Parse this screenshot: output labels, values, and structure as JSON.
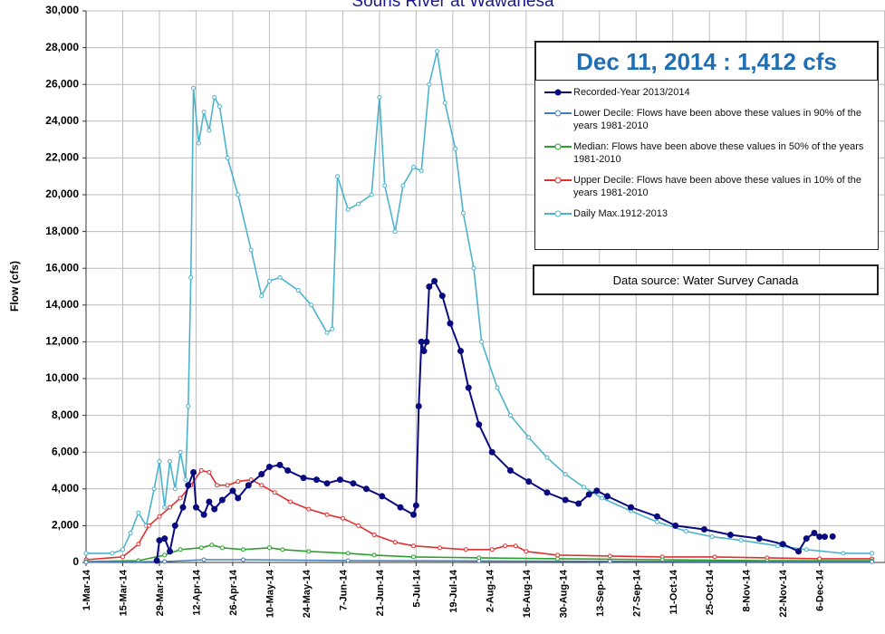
{
  "chart_data": {
    "type": "line",
    "title": "Souris River at Wawanesa",
    "headline": "Dec 11, 2014 : 1,412 cfs",
    "source": "Data source: Water Survey Canada",
    "y_label": "Flow (cfs)",
    "xlim": [
      "2014-03-01",
      "2014-12-31"
    ],
    "ylim": [
      0,
      30000
    ],
    "grid": true,
    "yticks": [
      0,
      {
        "value": 2000,
        "label": "2,000"
      },
      {
        "value": 4000,
        "label": "4,000"
      },
      {
        "value": 6000,
        "label": "6,000"
      },
      {
        "value": 8000,
        "label": "8,000"
      },
      {
        "value": 10000,
        "label": "10,000"
      },
      {
        "value": 12000,
        "label": "12,000"
      },
      {
        "value": 14000,
        "label": "14,000"
      },
      {
        "value": 16000,
        "label": "16,000"
      },
      {
        "value": 18000,
        "label": "18,000"
      },
      {
        "value": 20000,
        "label": "20,000"
      },
      {
        "value": 22000,
        "label": "22,000"
      },
      {
        "value": 24000,
        "label": "24,000"
      },
      {
        "value": 26000,
        "label": "26,000"
      },
      {
        "value": 28000,
        "label": "28,000"
      },
      {
        "value": 30000,
        "label": "30,000"
      }
    ],
    "xticks": [
      {
        "value": "2014-03-01",
        "label": "1-Mar-14"
      },
      {
        "value": "2014-03-15",
        "label": "15-Mar-14"
      },
      {
        "value": "2014-03-29",
        "label": "29-Mar-14"
      },
      {
        "value": "2014-04-12",
        "label": "12-Apr-14"
      },
      {
        "value": "2014-04-26",
        "label": "26-Apr-14"
      },
      {
        "value": "2014-05-10",
        "label": "10-May-14"
      },
      {
        "value": "2014-05-24",
        "label": "24-May-14"
      },
      {
        "value": "2014-06-07",
        "label": "7-Jun-14"
      },
      {
        "value": "2014-06-21",
        "label": "21-Jun-14"
      },
      {
        "value": "2014-07-05",
        "label": "5-Jul-14"
      },
      {
        "value": "2014-07-19",
        "label": "19-Jul-14"
      },
      {
        "value": "2014-08-02",
        "label": "2-Aug-14"
      },
      {
        "value": "2014-08-16",
        "label": "16-Aug-14"
      },
      {
        "value": "2014-08-30",
        "label": "30-Aug-14"
      },
      {
        "value": "2014-09-13",
        "label": "13-Sep-14"
      },
      {
        "value": "2014-09-27",
        "label": "27-Sep-14"
      },
      {
        "value": "2014-10-11",
        "label": "11-Oct-14"
      },
      {
        "value": "2014-10-25",
        "label": "25-Oct-14"
      },
      {
        "value": "2014-11-08",
        "label": "8-Nov-14"
      },
      {
        "value": "2014-11-22",
        "label": "22-Nov-14"
      },
      {
        "value": "2014-12-06",
        "label": "6-Dec-14"
      }
    ],
    "series": [
      {
        "name": "Recorded-Year 2013/2014",
        "color": "#0a0a80",
        "x": [
          "2014-03-28",
          "2014-03-29",
          "2014-03-31",
          "2014-04-02",
          "2014-04-04",
          "2014-04-07",
          "2014-04-09",
          "2014-04-11",
          "2014-04-12",
          "2014-04-15",
          "2014-04-17",
          "2014-04-19",
          "2014-04-22",
          "2014-04-26",
          "2014-04-28",
          "2014-05-02",
          "2014-05-07",
          "2014-05-10",
          "2014-05-14",
          "2014-05-17",
          "2014-05-23",
          "2014-05-28",
          "2014-06-01",
          "2014-06-06",
          "2014-06-11",
          "2014-06-16",
          "2014-06-22",
          "2014-06-29",
          "2014-07-04",
          "2014-07-05",
          "2014-07-06",
          "2014-07-07",
          "2014-07-08",
          "2014-07-09",
          "2014-07-10",
          "2014-07-12",
          "2014-07-15",
          "2014-07-18",
          "2014-07-22",
          "2014-07-25",
          "2014-07-29",
          "2014-08-03",
          "2014-08-10",
          "2014-08-17",
          "2014-08-24",
          "2014-08-31",
          "2014-09-05",
          "2014-09-09",
          "2014-09-12",
          "2014-09-16",
          "2014-09-25",
          "2014-10-05",
          "2014-10-12",
          "2014-10-23",
          "2014-11-02",
          "2014-11-13",
          "2014-11-22",
          "2014-11-28",
          "2014-12-01",
          "2014-12-04",
          "2014-12-06",
          "2014-12-08",
          "2014-12-09",
          "2014-12-11"
        ],
        "values": [
          100,
          1200,
          1300,
          600,
          2000,
          3000,
          4200,
          4900,
          3000,
          2600,
          3300,
          2900,
          3400,
          3900,
          3500,
          4200,
          4800,
          5200,
          5300,
          5000,
          4600,
          4500,
          4300,
          4500,
          4300,
          4000,
          3600,
          3000,
          2600,
          3100,
          8500,
          12000,
          11500,
          12000,
          15000,
          15300,
          14500,
          13000,
          11500,
          9500,
          7500,
          6000,
          5000,
          4400,
          3800,
          3400,
          3200,
          3700,
          3900,
          3600,
          3000,
          2500,
          2000,
          1800,
          1500,
          1300,
          1000,
          600,
          1300,
          1600,
          1400,
          1400,
          null,
          1412
        ]
      },
      {
        "name": "Lower Decile: Flows have been above these values in 90% of the years 1981-2010",
        "color": "#4a7ebb",
        "x": [
          "2014-03-01",
          "2014-03-31",
          "2014-04-15",
          "2014-04-30",
          "2014-06-09",
          "2014-07-29",
          "2014-09-17",
          "2014-12-26"
        ],
        "values": [
          20,
          50,
          150,
          150,
          100,
          80,
          60,
          40
        ]
      },
      {
        "name": "Median: Flows have been above these values in 50% of the years 1981-2010",
        "color": "#2ca02c",
        "x": [
          "2014-03-01",
          "2014-03-21",
          "2014-03-31",
          "2014-04-06",
          "2014-04-14",
          "2014-04-18",
          "2014-04-22",
          "2014-04-30",
          "2014-05-10",
          "2014-05-15",
          "2014-05-25",
          "2014-06-09",
          "2014-06-19",
          "2014-07-04",
          "2014-07-29",
          "2014-08-28",
          "2014-10-07",
          "2014-11-16",
          "2014-12-26"
        ],
        "values": [
          50,
          100,
          400,
          700,
          800,
          950,
          800,
          700,
          800,
          700,
          600,
          500,
          400,
          300,
          250,
          200,
          150,
          100,
          100
        ]
      },
      {
        "name": "Upper Decile: Flows have been above these values in 10% of the years 1981-2010",
        "color": "#e03030",
        "x": [
          "2014-03-01",
          "2014-03-15",
          "2014-03-21",
          "2014-03-25",
          "2014-03-29",
          "2014-04-02",
          "2014-04-06",
          "2014-04-10",
          "2014-04-14",
          "2014-04-17",
          "2014-04-20",
          "2014-04-24",
          "2014-04-28",
          "2014-05-03",
          "2014-05-07",
          "2014-05-12",
          "2014-05-18",
          "2014-05-25",
          "2014-06-01",
          "2014-06-07",
          "2014-06-13",
          "2014-06-19",
          "2014-06-27",
          "2014-07-04",
          "2014-07-14",
          "2014-07-24",
          "2014-08-03",
          "2014-08-08",
          "2014-08-12",
          "2014-08-16",
          "2014-08-28",
          "2014-09-17",
          "2014-10-07",
          "2014-10-27",
          "2014-11-16",
          "2014-12-06",
          "2014-12-26"
        ],
        "values": [
          150,
          300,
          1000,
          2000,
          2500,
          3000,
          3500,
          4200,
          5000,
          4900,
          4200,
          4200,
          4400,
          4500,
          4200,
          3800,
          3300,
          2900,
          2600,
          2400,
          2000,
          1500,
          1100,
          900,
          800,
          700,
          700,
          900,
          900,
          600,
          400,
          350,
          300,
          300,
          250,
          200,
          200
        ]
      },
      {
        "name": "Daily Max.1912-2013",
        "color": "#4db3cc",
        "x": [
          "2014-03-01",
          "2014-03-11",
          "2014-03-15",
          "2014-03-18",
          "2014-03-21",
          "2014-03-24",
          "2014-03-27",
          "2014-03-29",
          "2014-03-31",
          "2014-04-02",
          "2014-04-04",
          "2014-04-06",
          "2014-04-08",
          "2014-04-09",
          "2014-04-10",
          "2014-04-11",
          "2014-04-13",
          "2014-04-15",
          "2014-04-17",
          "2014-04-19",
          "2014-04-21",
          "2014-04-24",
          "2014-04-28",
          "2014-05-03",
          "2014-05-07",
          "2014-05-10",
          "2014-05-14",
          "2014-05-21",
          "2014-05-26",
          "2014-06-01",
          "2014-06-03",
          "2014-06-05",
          "2014-06-09",
          "2014-06-13",
          "2014-06-18",
          "2014-06-21",
          "2014-06-23",
          "2014-06-27",
          "2014-06-30",
          "2014-07-04",
          "2014-07-07",
          "2014-07-10",
          "2014-07-13",
          "2014-07-16",
          "2014-07-20",
          "2014-07-23",
          "2014-07-27",
          "2014-07-30",
          "2014-08-05",
          "2014-08-10",
          "2014-08-17",
          "2014-08-24",
          "2014-08-31",
          "2014-09-07",
          "2014-09-14",
          "2014-09-25",
          "2014-10-05",
          "2014-10-16",
          "2014-10-26",
          "2014-11-06",
          "2014-11-20",
          "2014-12-01",
          "2014-12-15",
          "2014-12-26"
        ],
        "values": [
          500,
          500,
          700,
          1600,
          2700,
          2000,
          4000,
          5500,
          3000,
          5500,
          4000,
          6000,
          4500,
          8500,
          15500,
          25800,
          22800,
          24500,
          23500,
          25300,
          24800,
          22000,
          20000,
          17000,
          14500,
          15300,
          15500,
          14800,
          14000,
          12500,
          12700,
          21000,
          19200,
          19500,
          20000,
          25300,
          20500,
          18000,
          20500,
          21500,
          21300,
          26000,
          27800,
          25000,
          22500,
          19000,
          16000,
          12000,
          9500,
          8000,
          6800,
          5700,
          4800,
          4100,
          3500,
          2800,
          2200,
          1700,
          1400,
          1200,
          900,
          700,
          500,
          500
        ]
      }
    ]
  }
}
